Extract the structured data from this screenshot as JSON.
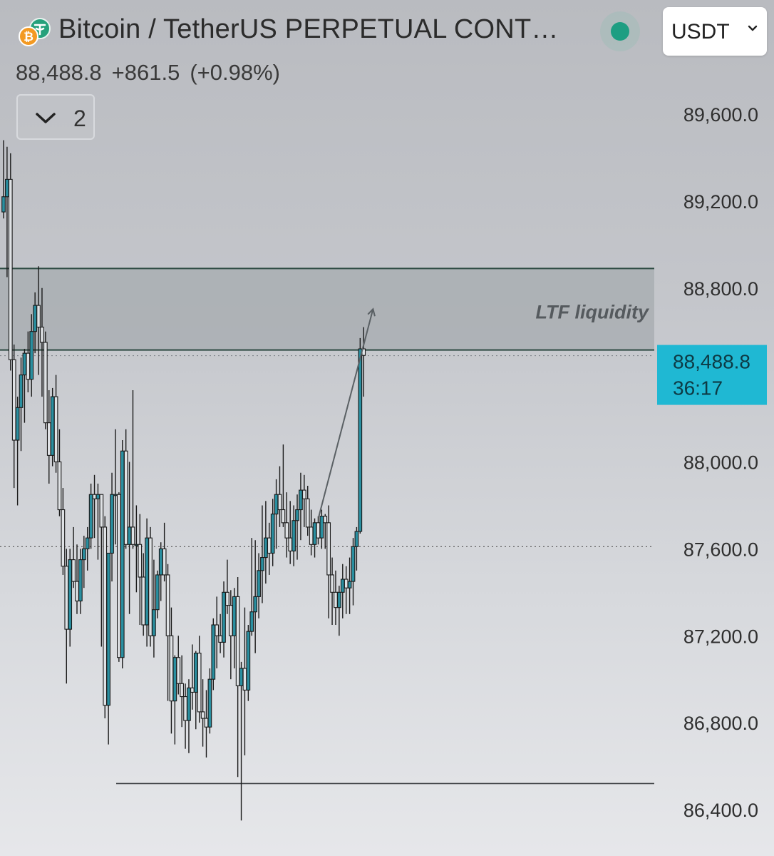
{
  "header": {
    "title": "Bitcoin / TetherUS PERPETUAL CONT…",
    "quote_currency": "USDT",
    "last_price": "88,488.8",
    "change": "+861.5",
    "change_pct": "(+0.98%)",
    "indicator_count": "2",
    "status_color": "#1e9e82"
  },
  "icons": {
    "symbol": "bitcoin-tether-logo-icon",
    "dropdown": "chevron-down-icon",
    "indicators": "chevron-down-icon"
  },
  "chart_data": {
    "type": "candlestick",
    "title": "",
    "ylim": [
      86250,
      89800
    ],
    "y_ticks": [
      89600,
      89200,
      88800,
      88400,
      88000,
      87600,
      87200,
      86800,
      86400
    ],
    "y_tick_labels": [
      "89,600.0",
      "89,200.0",
      "88,800.0",
      "",
      "88,000.0",
      "87,600.0",
      "87,200.0",
      "86,800.0",
      "86,400.0"
    ],
    "current_price": 88488.8,
    "current_price_label": "88,488.8",
    "countdown": "36:17",
    "reference_price": 87610,
    "zone": {
      "label": "LTF liquidity",
      "top": 88890,
      "bottom": 88515
    },
    "support_level": 86520,
    "arrow": {
      "from_index": 90,
      "from_price": 87750,
      "to_index": 104,
      "to_price": 88700
    },
    "colors": {
      "candle_up": "#2a8fa0",
      "candle_down": "#dfe2e5",
      "outline": "#1a1a1a",
      "zone_fill": "#a6abaf",
      "zone_border": "#2d4a42",
      "tag": "#1fb8d3"
    },
    "candles": [
      [
        89150,
        89480,
        89120,
        89220
      ],
      [
        89220,
        89450,
        88850,
        89300
      ],
      [
        89300,
        89420,
        88420,
        88470
      ],
      [
        88470,
        88540,
        87880,
        88100
      ],
      [
        88100,
        88300,
        87800,
        88250
      ],
      [
        88250,
        88480,
        88050,
        88400
      ],
      [
        88400,
        88520,
        88180,
        88500
      ],
      [
        88500,
        88600,
        88320,
        88380
      ],
      [
        88380,
        88680,
        88300,
        88600
      ],
      [
        88600,
        88780,
        88500,
        88720
      ],
      [
        88720,
        88900,
        88400,
        88620
      ],
      [
        88620,
        88800,
        88300,
        88550
      ],
      [
        88550,
        88600,
        88150,
        88180
      ],
      [
        88180,
        88330,
        87900,
        88030
      ],
      [
        88030,
        88340,
        87980,
        88300
      ],
      [
        88300,
        88400,
        87950,
        88000
      ],
      [
        88000,
        88150,
        87750,
        87780
      ],
      [
        87780,
        87880,
        87480,
        87520
      ],
      [
        87520,
        87600,
        86980,
        87230
      ],
      [
        87230,
        87600,
        87150,
        87550
      ],
      [
        87550,
        87700,
        87420,
        87450
      ],
      [
        87450,
        87620,
        87300,
        87360
      ],
      [
        87360,
        87600,
        87300,
        87550
      ],
      [
        87550,
        87660,
        87420,
        87600
      ],
      [
        87600,
        87700,
        87500,
        87650
      ],
      [
        87650,
        87900,
        87600,
        87850
      ],
      [
        87850,
        87940,
        87650,
        87830
      ],
      [
        87830,
        87900,
        87550,
        87850
      ],
      [
        87850,
        87850,
        87150,
        87700
      ],
      [
        87700,
        87750,
        86820,
        86880
      ],
      [
        86880,
        87580,
        86700,
        87580
      ],
      [
        87580,
        87950,
        87450,
        87850
      ],
      [
        87850,
        88150,
        87620,
        87850
      ],
      [
        87850,
        87860,
        87080,
        87100
      ],
      [
        87100,
        88100,
        87050,
        88050
      ],
      [
        88050,
        88150,
        87600,
        87620
      ],
      [
        87620,
        88000,
        87300,
        87700
      ],
      [
        87700,
        88330,
        87600,
        87620
      ],
      [
        87620,
        87800,
        87400,
        87620
      ],
      [
        87620,
        87760,
        87250,
        87470
      ],
      [
        87470,
        87580,
        87200,
        87250
      ],
      [
        87250,
        87740,
        87150,
        87650
      ],
      [
        87650,
        87700,
        87150,
        87200
      ],
      [
        87200,
        87550,
        87100,
        87320
      ],
      [
        87320,
        87500,
        87280,
        87480
      ],
      [
        87480,
        87630,
        87360,
        87600
      ],
      [
        87600,
        87720,
        87450,
        87480
      ],
      [
        87480,
        87530,
        86900,
        87200
      ],
      [
        87200,
        87330,
        86750,
        86900
      ],
      [
        86900,
        87110,
        86700,
        87100
      ],
      [
        87100,
        87200,
        86930,
        86980
      ],
      [
        86980,
        87110,
        86780,
        86920
      ],
      [
        86920,
        86980,
        86680,
        86810
      ],
      [
        86810,
        87000,
        86660,
        86960
      ],
      [
        86960,
        87160,
        86860,
        86940
      ],
      [
        86940,
        87130,
        86770,
        87120
      ],
      [
        87120,
        87200,
        86800,
        86850
      ],
      [
        86850,
        87000,
        86690,
        86820
      ],
      [
        86820,
        86950,
        86640,
        86780
      ],
      [
        86780,
        87050,
        86750,
        87000
      ],
      [
        87000,
        87280,
        86950,
        87250
      ],
      [
        87250,
        87380,
        87050,
        87200
      ],
      [
        87200,
        87300,
        87120,
        87170
      ],
      [
        87170,
        87450,
        87100,
        87400
      ],
      [
        87400,
        87550,
        87300,
        87340
      ],
      [
        87340,
        87410,
        87000,
        87200
      ],
      [
        87200,
        87420,
        87050,
        87380
      ],
      [
        87380,
        87470,
        86550,
        86970
      ],
      [
        86970,
        87080,
        86350,
        87050
      ],
      [
        87050,
        87330,
        86650,
        86950
      ],
      [
        86950,
        87250,
        86900,
        87220
      ],
      [
        87220,
        87650,
        87200,
        87310
      ],
      [
        87310,
        87640,
        87120,
        87380
      ],
      [
        87380,
        87580,
        87280,
        87500
      ],
      [
        87500,
        87800,
        87350,
        87560
      ],
      [
        87560,
        87820,
        87440,
        87650
      ],
      [
        87650,
        87720,
        87480,
        87580
      ],
      [
        87580,
        87830,
        87520,
        87760
      ],
      [
        87760,
        87920,
        87600,
        87850
      ],
      [
        87850,
        87980,
        87700,
        87780
      ],
      [
        87780,
        88080,
        87700,
        87720
      ],
      [
        87720,
        87860,
        87560,
        87650
      ],
      [
        87650,
        87820,
        87530,
        87590
      ],
      [
        87590,
        87800,
        87520,
        87730
      ],
      [
        87730,
        87850,
        87550,
        87780
      ],
      [
        87780,
        87950,
        87640,
        87870
      ],
      [
        87870,
        87940,
        87700,
        87830
      ],
      [
        87830,
        87890,
        87660,
        87700
      ],
      [
        87700,
        87780,
        87570,
        87620
      ],
      [
        87620,
        87740,
        87560,
        87720
      ],
      [
        87720,
        87750,
        87620,
        87650
      ],
      [
        87650,
        87780,
        87600,
        87750
      ],
      [
        87750,
        87760,
        87600,
        87720
      ],
      [
        87720,
        87800,
        87280,
        87480
      ],
      [
        87480,
        87560,
        87250,
        87400
      ],
      [
        87400,
        87500,
        87250,
        87330
      ],
      [
        87330,
        87430,
        87200,
        87400
      ],
      [
        87400,
        87530,
        87280,
        87460
      ],
      [
        87460,
        87520,
        87300,
        87420
      ],
      [
        87420,
        87560,
        87300,
        87450
      ],
      [
        87450,
        87650,
        87340,
        87610
      ],
      [
        87610,
        87700,
        87500,
        87680
      ],
      [
        87680,
        88570,
        87670,
        88520
      ],
      [
        88520,
        88620,
        88300,
        88490
      ]
    ]
  }
}
